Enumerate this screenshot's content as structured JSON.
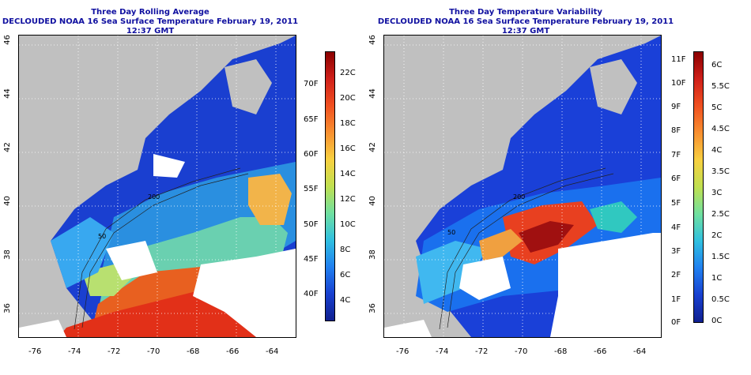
{
  "maps": [
    {
      "title": "Three Day Rolling Average",
      "subtitle": "DECLOUDED NOAA 16 Sea Surface Temperature February 19, 2011 12:37 GMT",
      "x_ticks": [
        "-76",
        "-74",
        "-72",
        "-70",
        "-68",
        "-66",
        "-64"
      ],
      "y_ticks": [
        "46",
        "44",
        "42",
        "40",
        "38",
        "36"
      ],
      "colorbar_right": [
        "22C",
        "20C",
        "18C",
        "16C",
        "14C",
        "12C",
        "10C",
        "8C",
        "6C",
        "4C"
      ],
      "colorbar_left": [
        "70F",
        "65F",
        "60F",
        "55F",
        "50F",
        "45F",
        "40F"
      ]
    },
    {
      "title": "Three Day Temperature Variability",
      "subtitle": "DECLOUDED NOAA 16 Sea Surface Temperature February 19, 2011 12:37 GMT",
      "x_ticks": [
        "-76",
        "-74",
        "-72",
        "-70",
        "-68",
        "-66",
        "-64"
      ],
      "y_ticks": [
        "46",
        "44",
        "42",
        "40",
        "38",
        "36"
      ],
      "colorbar_right": [
        "6C",
        "5.5C",
        "5C",
        "4.5C",
        "4C",
        "3.5C",
        "3C",
        "2.5C",
        "2C",
        "1.5C",
        "1C",
        "0.5C",
        "0C"
      ],
      "colorbar_left": [
        "11F",
        "10F",
        "9F",
        "8F",
        "7F",
        "6F",
        "5F",
        "4F",
        "3F",
        "2F",
        "1F",
        "0F"
      ]
    }
  ],
  "contour_labels": [
    "200",
    "200",
    "50",
    "50"
  ],
  "colors": {
    "land": "#c0c0c0",
    "cloud": "#ffffff",
    "title": "#1010a0"
  }
}
